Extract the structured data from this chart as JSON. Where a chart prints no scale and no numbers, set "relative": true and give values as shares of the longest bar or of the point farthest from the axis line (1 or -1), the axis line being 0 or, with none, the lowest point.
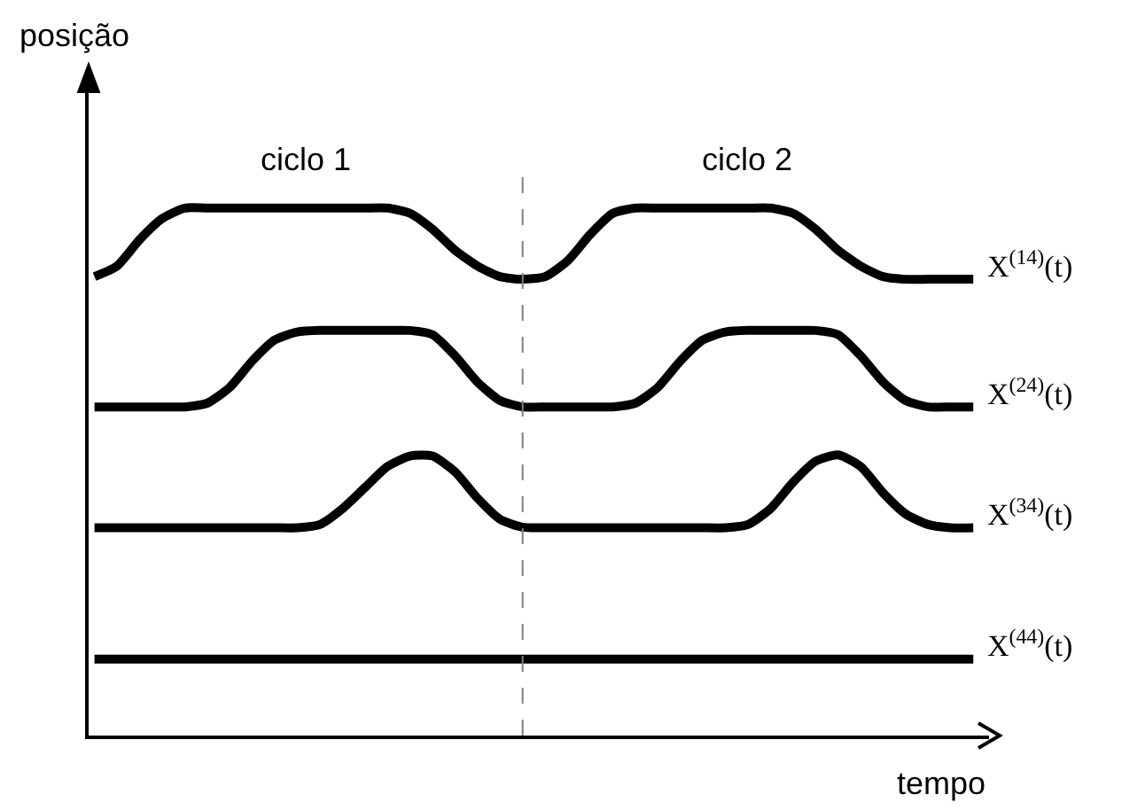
{
  "chart_data": {
    "type": "line",
    "relative": true,
    "xlabel": "tempo",
    "ylabel": "posição",
    "annotations": [
      "ciclo 1",
      "ciclo 2"
    ],
    "categories": [
      null,
      null,
      null,
      null,
      null,
      null,
      null,
      null,
      null,
      null,
      null,
      null,
      null,
      null,
      null,
      null,
      null,
      null,
      null,
      null,
      null,
      null,
      null,
      null,
      null,
      null,
      null,
      null,
      null,
      null,
      null,
      null,
      null,
      null,
      null,
      null,
      null,
      null,
      null,
      null
    ],
    "series": [
      {
        "name": "X$^{(14)}$(t)",
        "color": "#000000",
        "values": [
          0.87,
          0.89,
          0.94,
          0.98,
          1,
          1,
          1,
          1,
          1,
          1,
          1,
          1,
          1,
          1,
          0.99,
          0.96,
          0.92,
          0.89,
          0.87,
          0.865,
          0.87,
          0.9,
          0.95,
          0.99,
          1,
          1,
          1,
          1,
          1,
          1,
          1,
          0.99,
          0.96,
          0.92,
          0.89,
          0.87,
          0.865,
          0.865,
          0.865,
          0.865
        ]
      },
      {
        "name": "X$^{(24)}$(t)",
        "color": "#000000",
        "values": [
          0.623,
          0.623,
          0.623,
          0.623,
          0.623,
          0.63,
          0.66,
          0.71,
          0.75,
          0.765,
          0.768,
          0.768,
          0.768,
          0.768,
          0.768,
          0.76,
          0.72,
          0.67,
          0.635,
          0.623,
          0.623,
          0.623,
          0.623,
          0.623,
          0.63,
          0.66,
          0.71,
          0.75,
          0.765,
          0.768,
          0.768,
          0.768,
          0.768,
          0.76,
          0.72,
          0.67,
          0.635,
          0.623,
          0.623,
          0.623
        ]
      },
      {
        "name": "X$^{(34)}$(t)",
        "color": "#000000",
        "values": [
          0.394,
          0.394,
          0.394,
          0.394,
          0.394,
          0.394,
          0.394,
          0.394,
          0.394,
          0.394,
          0.4,
          0.43,
          0.47,
          0.51,
          0.53,
          0.53,
          0.5,
          0.45,
          0.41,
          0.395,
          0.394,
          0.394,
          0.394,
          0.394,
          0.394,
          0.394,
          0.394,
          0.394,
          0.394,
          0.4,
          0.43,
          0.48,
          0.52,
          0.532,
          0.51,
          0.46,
          0.42,
          0.4,
          0.394,
          0.394
        ]
      },
      {
        "name": "X$^{(44)}$(t)",
        "color": "#000000",
        "values": [
          0.145,
          0.145,
          0.145,
          0.145,
          0.145,
          0.145,
          0.145,
          0.145,
          0.145,
          0.145,
          0.145,
          0.145,
          0.145,
          0.145,
          0.145,
          0.145,
          0.145,
          0.145,
          0.145,
          0.145,
          0.145,
          0.145,
          0.145,
          0.145,
          0.145,
          0.145,
          0.145,
          0.145,
          0.145,
          0.145,
          0.145,
          0.145,
          0.145,
          0.145,
          0.145,
          0.145,
          0.145,
          0.145,
          0.145,
          0.145
        ]
      }
    ],
    "legend": false,
    "marker": "none",
    "line_style": "solid"
  }
}
